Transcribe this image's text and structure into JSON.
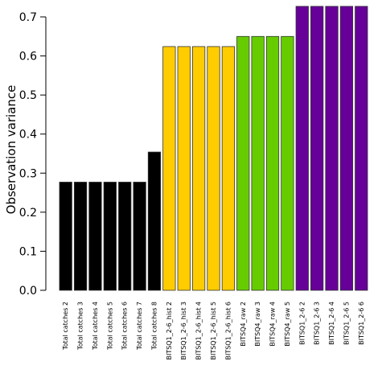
{
  "chart_data": {
    "type": "bar",
    "title": "",
    "xlabel": "",
    "ylabel": "Observation variance",
    "ylim": [
      0,
      0.7
    ],
    "yticks": [
      "0.0",
      "0.1",
      "0.2",
      "0.3",
      "0.4",
      "0.5",
      "0.6",
      "0.7"
    ],
    "grid": false,
    "legend": "none",
    "categories": [
      "Total catches 2",
      "Total catches 3",
      "Total catches 4",
      "Total catches 5",
      "Total catches 6",
      "Total catches 7",
      "Total catches 8",
      "BITSQ1_2-6_hist 2",
      "BITSQ1_2-6_hist 3",
      "BITSQ1_2-6_hist 4",
      "BITSQ1_2-6_hist 5",
      "BITSQ1_2-6_hist 6",
      "BITSQ4_raw 2",
      "BITSQ4_raw 3",
      "BITSQ4_raw 4",
      "BITSQ4_raw 5",
      "BITSQ1_2-6 2",
      "BITSQ1_2-6 3",
      "BITSQ1_2-6 4",
      "BITSQ1_2-6 5",
      "BITSQ1_2-6 6"
    ],
    "values": [
      0.277,
      0.277,
      0.277,
      0.277,
      0.277,
      0.277,
      0.354,
      0.624,
      0.624,
      0.624,
      0.624,
      0.624,
      0.65,
      0.65,
      0.65,
      0.65,
      0.727,
      0.727,
      0.727,
      0.727,
      0.727
    ],
    "colors": [
      "#000000",
      "#000000",
      "#000000",
      "#000000",
      "#000000",
      "#000000",
      "#000000",
      "#FFCC00",
      "#FFCC00",
      "#FFCC00",
      "#FFCC00",
      "#FFCC00",
      "#66CC00",
      "#66CC00",
      "#66CC00",
      "#66CC00",
      "#660099",
      "#660099",
      "#660099",
      "#660099",
      "#660099"
    ]
  }
}
